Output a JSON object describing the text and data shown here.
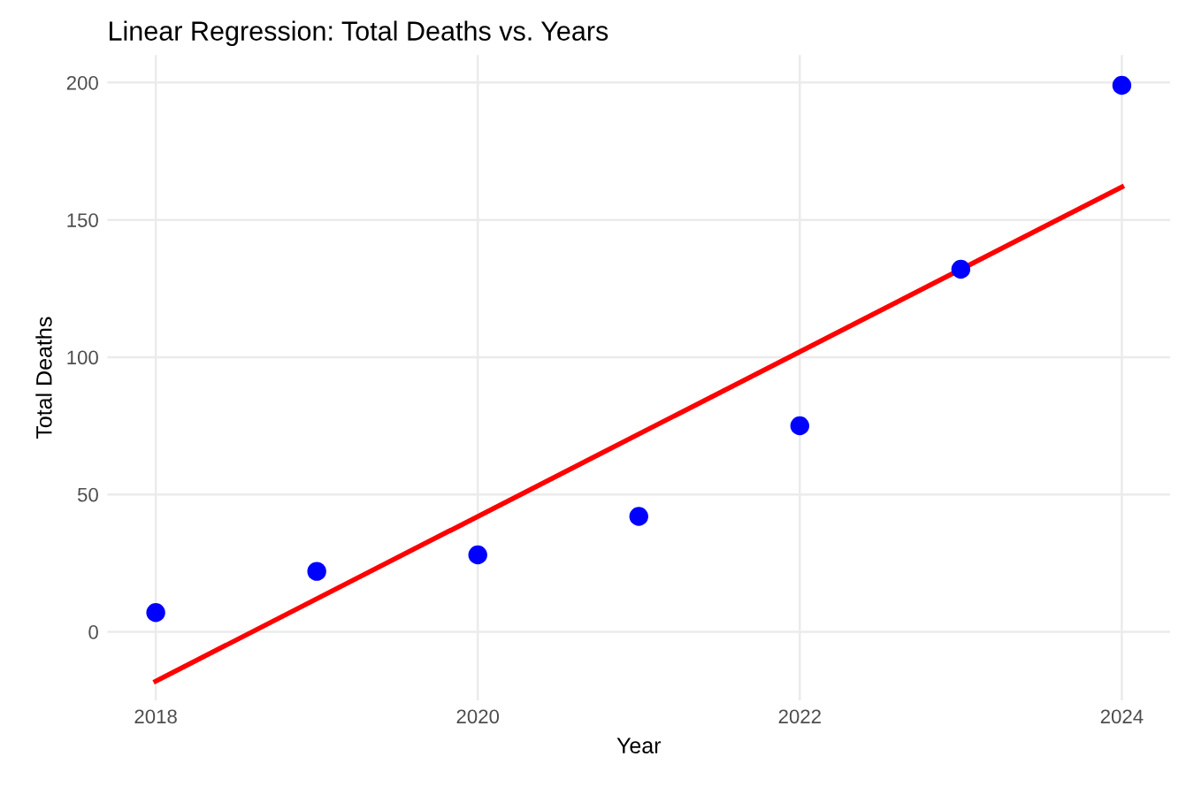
{
  "chart_data": {
    "type": "scatter",
    "title": "Linear Regression: Total Deaths vs. Years",
    "xlabel": "Year",
    "ylabel": "Total Deaths",
    "series": [
      {
        "marker": "circle",
        "color": "#0000ff",
        "x": [
          2018,
          2019,
          2020,
          2021,
          2022,
          2023,
          2024
        ],
        "values": [
          7,
          22,
          28,
          42,
          75,
          132,
          199
        ]
      },
      {
        "type": "line",
        "color": "#ff0000",
        "x": [
          2018,
          2024
        ],
        "values": [
          -18,
          162
        ]
      }
    ],
    "xlim": [
      2017.7,
      2024.3
    ],
    "ylim": [
      -25,
      210
    ],
    "xticks": [
      2018,
      2020,
      2022,
      2024
    ],
    "yticks": [
      0,
      50,
      100,
      150,
      200
    ],
    "grid": true
  }
}
